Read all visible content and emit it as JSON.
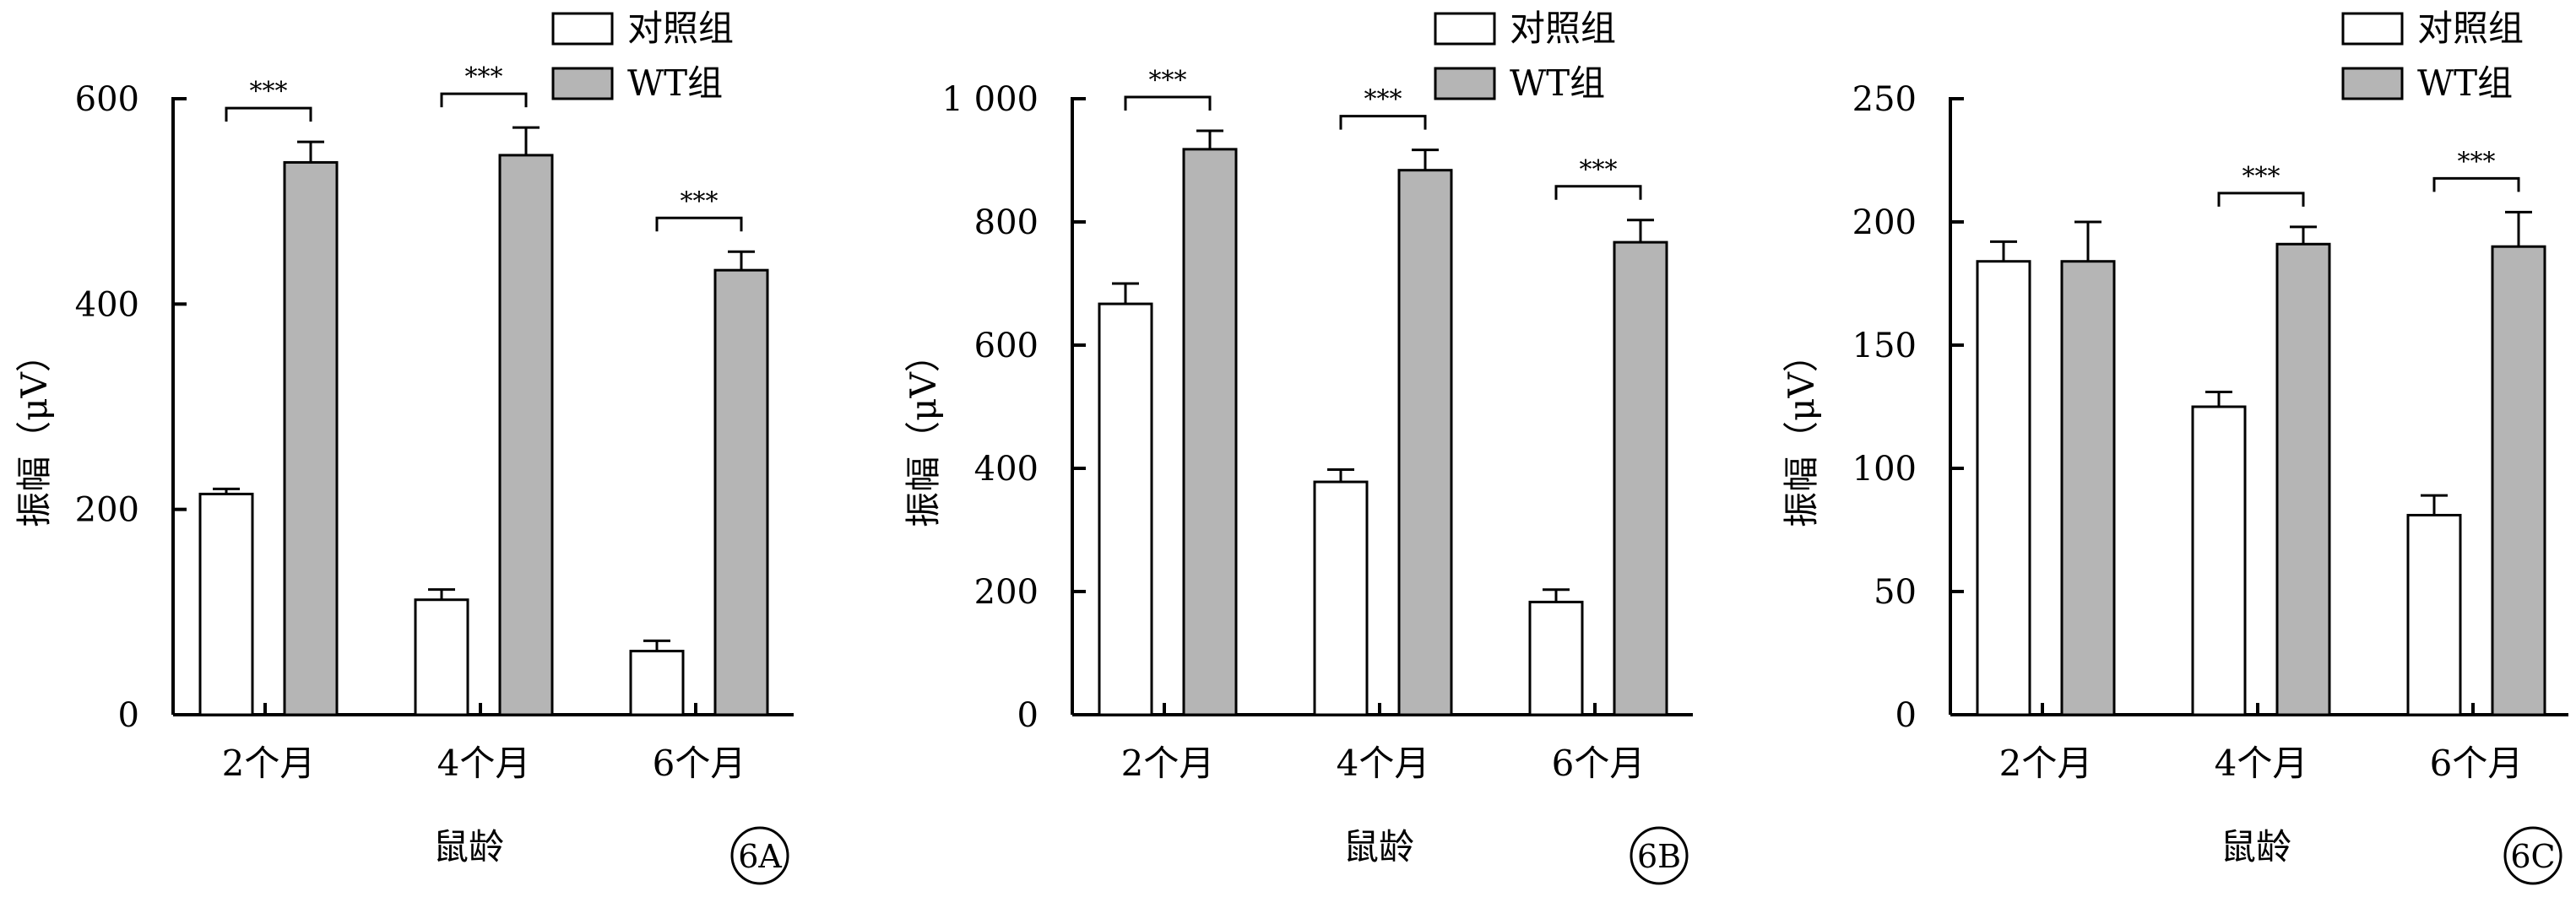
{
  "chart_data": [
    {
      "type": "bar",
      "panel_label": "6A",
      "categories": [
        "2个月",
        "4个月",
        "6个月"
      ],
      "xlabel": "鼠龄",
      "ylabel": "振幅（μV）",
      "ylim": [
        0,
        600
      ],
      "yticks": [
        0,
        200,
        400,
        600
      ],
      "ytick_labels": [
        "0",
        "200",
        "400",
        "600"
      ],
      "series": [
        {
          "name": "对照组",
          "color": "#ffffff",
          "values": [
            215,
            112,
            62
          ],
          "errors": [
            5,
            10,
            10
          ]
        },
        {
          "name": "WT组",
          "color": "#b5b5b5",
          "values": [
            538,
            545,
            433
          ],
          "errors": [
            20,
            27,
            18
          ]
        }
      ],
      "significance": [
        {
          "category_index": 0,
          "label": "***"
        },
        {
          "category_index": 1,
          "label": "***"
        },
        {
          "category_index": 2,
          "label": "***"
        }
      ]
    },
    {
      "type": "bar",
      "panel_label": "6B",
      "categories": [
        "2个月",
        "4个月",
        "6个月"
      ],
      "xlabel": "鼠龄",
      "ylabel": "振幅（μV）",
      "ylim": [
        0,
        1000
      ],
      "yticks": [
        0,
        200,
        400,
        600,
        800,
        1000
      ],
      "ytick_labels": [
        "0",
        "200",
        "400",
        "600",
        "800",
        "1 000"
      ],
      "series": [
        {
          "name": "对照组",
          "color": "#ffffff",
          "values": [
            667,
            378,
            183
          ],
          "errors": [
            33,
            20,
            20
          ]
        },
        {
          "name": "WT组",
          "color": "#b5b5b5",
          "values": [
            918,
            884,
            767
          ],
          "errors": [
            30,
            33,
            36
          ]
        }
      ],
      "significance": [
        {
          "category_index": 0,
          "label": "***"
        },
        {
          "category_index": 1,
          "label": "***"
        },
        {
          "category_index": 2,
          "label": "***"
        }
      ]
    },
    {
      "type": "bar",
      "panel_label": "6C",
      "categories": [
        "2个月",
        "4个月",
        "6个月"
      ],
      "xlabel": "鼠龄",
      "ylabel": "振幅（μV）",
      "ylim": [
        0,
        250
      ],
      "yticks": [
        0,
        50,
        100,
        150,
        200,
        250
      ],
      "ytick_labels": [
        "0",
        "50",
        "100",
        "150",
        "200",
        "250"
      ],
      "series": [
        {
          "name": "对照组",
          "color": "#ffffff",
          "values": [
            184,
            125,
            81
          ],
          "errors": [
            8,
            6,
            8
          ]
        },
        {
          "name": "WT组",
          "color": "#b5b5b5",
          "values": [
            184,
            191,
            190
          ],
          "errors": [
            16,
            7,
            14
          ]
        }
      ],
      "significance": [
        {
          "category_index": 1,
          "label": "***"
        },
        {
          "category_index": 2,
          "label": "***"
        }
      ]
    }
  ]
}
